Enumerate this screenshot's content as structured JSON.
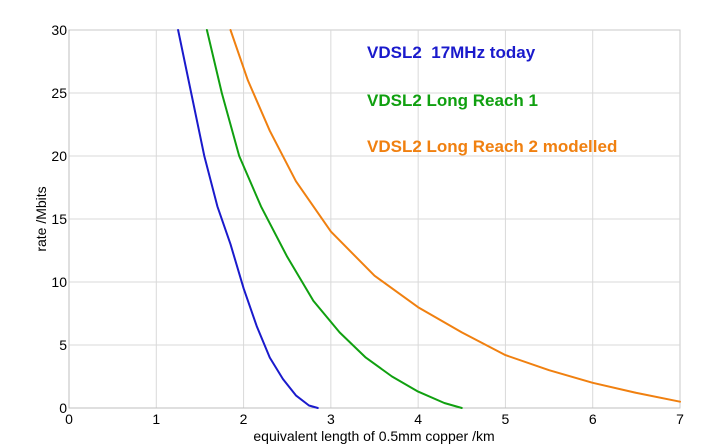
{
  "chart_data": {
    "type": "line",
    "title": "",
    "xlabel": "equivalent length of 0.5mm copper   /km",
    "ylabel": "rate  /Mbits",
    "xlim": [
      0,
      7
    ],
    "ylim": [
      0,
      30
    ],
    "x_ticks": [
      0,
      1,
      2,
      3,
      4,
      5,
      6,
      7
    ],
    "y_ticks": [
      0,
      5,
      10,
      15,
      20,
      25,
      30
    ],
    "grid": true,
    "legend_position": "top-right",
    "series": [
      {
        "name": "VDSL2  17MHz today",
        "color": "#1a1acc",
        "points": [
          [
            1.25,
            30
          ],
          [
            1.4,
            25
          ],
          [
            1.55,
            20
          ],
          [
            1.7,
            16
          ],
          [
            1.85,
            13
          ],
          [
            2.0,
            9.5
          ],
          [
            2.15,
            6.5
          ],
          [
            2.3,
            4
          ],
          [
            2.45,
            2.3
          ],
          [
            2.6,
            1.0
          ],
          [
            2.75,
            0.2
          ],
          [
            2.85,
            0
          ]
        ]
      },
      {
        "name": "VDSL2 Long Reach 1",
        "color": "#10a010",
        "points": [
          [
            1.58,
            30
          ],
          [
            1.75,
            25
          ],
          [
            1.95,
            20
          ],
          [
            2.2,
            16
          ],
          [
            2.5,
            12
          ],
          [
            2.8,
            8.5
          ],
          [
            3.1,
            6
          ],
          [
            3.4,
            4
          ],
          [
            3.7,
            2.5
          ],
          [
            4.0,
            1.3
          ],
          [
            4.3,
            0.4
          ],
          [
            4.5,
            0
          ]
        ]
      },
      {
        "name": "VDSL2 Long Reach 2 modelled",
        "color": "#f08010",
        "points": [
          [
            1.85,
            30
          ],
          [
            2.05,
            26
          ],
          [
            2.3,
            22
          ],
          [
            2.6,
            18
          ],
          [
            3.0,
            14
          ],
          [
            3.5,
            10.5
          ],
          [
            4.0,
            8
          ],
          [
            4.5,
            6
          ],
          [
            5.0,
            4.2
          ],
          [
            5.5,
            3.0
          ],
          [
            6.0,
            2.0
          ],
          [
            6.5,
            1.2
          ],
          [
            7.0,
            0.5
          ]
        ]
      }
    ]
  }
}
